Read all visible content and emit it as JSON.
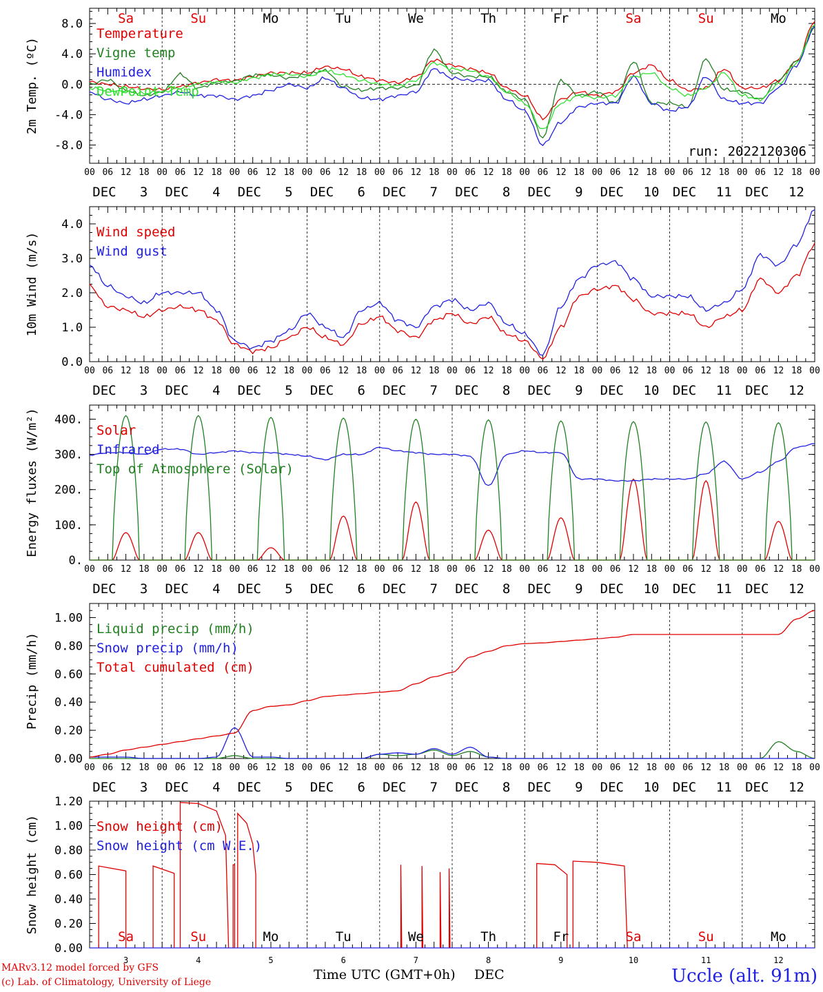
{
  "run_label": "run: 2022120306",
  "days_top": [
    "Sa",
    "Su",
    "Mo",
    "Tu",
    "We",
    "Th",
    "Fr",
    "Sa",
    "Su",
    "Mo"
  ],
  "days_top_colors": [
    "#e00000",
    "#e00000",
    "#000000",
    "#000000",
    "#000000",
    "#000000",
    "#000000",
    "#e00000",
    "#e00000",
    "#000000"
  ],
  "day_labels": [
    "3",
    "4",
    "5",
    "6",
    "7",
    "8",
    "9",
    "10",
    "11",
    "12"
  ],
  "day_prefix": "DEC",
  "hour_ticks": [
    "00",
    "06",
    "12",
    "18"
  ],
  "footer": {
    "model": "MARv3.12 model forced by GFS",
    "copyright": "(c) Lab. of Climatology, University of Liege",
    "xaxis_title": "Time UTC (GMT+0h)",
    "xaxis_month": "DEC",
    "station": "Uccle (alt. 91m)"
  },
  "chart_data": [
    {
      "id": "temp",
      "type": "line",
      "ylabel": "2m Temp. (ºC)",
      "ylim": [
        -10.4,
        10.0
      ],
      "yticks": [
        "8.0",
        "4.0",
        "0.0",
        "-4.0",
        "-8.0"
      ],
      "ytick_values": [
        8,
        4,
        0,
        -4,
        -8
      ],
      "zero_line": true,
      "x_hours": [
        0,
        6,
        12,
        18,
        24,
        30,
        36,
        42,
        48,
        54,
        60,
        66,
        72,
        78,
        84,
        90,
        96,
        102,
        108,
        114,
        120,
        126,
        132,
        138,
        144,
        150,
        156,
        162,
        168,
        174,
        180,
        186,
        192,
        198,
        204,
        210,
        216,
        222,
        228,
        234,
        240
      ],
      "series": [
        {
          "name": "Temperature",
          "color": "#e00000",
          "values": [
            0.3,
            0,
            -0.3,
            -0.6,
            -0.7,
            -0.3,
            0.2,
            0.6,
            0.5,
            1.0,
            1.5,
            1.5,
            1.5,
            2.3,
            2.0,
            1.0,
            0.5,
            0.2,
            1.0,
            3.2,
            2.5,
            2.0,
            1.5,
            -0.5,
            -1.5,
            -4.5,
            -2.0,
            -1.0,
            -1.5,
            -1.0,
            1.5,
            2.5,
            0.5,
            -0.8,
            -0.5,
            2.0,
            -0.5,
            -0.5,
            0.5,
            3.0,
            8.3
          ]
        },
        {
          "name": "Vigne temp",
          "color": "#208020",
          "values": [
            0,
            0.6,
            -0.8,
            -1.5,
            -1.0,
            1.3,
            -0.5,
            0.2,
            0.4,
            1.2,
            1.2,
            0.8,
            1.3,
            1.8,
            -0.3,
            -0.8,
            -0.5,
            -0.5,
            -0.2,
            4.5,
            1.5,
            1.0,
            1.0,
            -1.0,
            -2.0,
            -7.0,
            0.5,
            -1.5,
            -1.0,
            -2.5,
            3.0,
            -2.5,
            -2.5,
            -3.0,
            3.3,
            -0.7,
            -1.0,
            -2.0,
            0.5,
            3.0,
            7.5
          ]
        },
        {
          "name": "Humidex",
          "color": "#2020e0",
          "values": [
            -1.0,
            -2.0,
            -2.5,
            -2.0,
            -1.5,
            -1.0,
            -1.5,
            -1.5,
            -2.0,
            -1.5,
            -0.8,
            0,
            -0.5,
            0.8,
            -0.5,
            -1.8,
            -2.0,
            -1.5,
            -1.0,
            2.0,
            0.8,
            0.5,
            0.5,
            -2.0,
            -3.5,
            -8.0,
            -5.0,
            -3.0,
            -2.5,
            -2.5,
            1.0,
            -2.5,
            -3.5,
            -3.0,
            1.0,
            -2.0,
            -2.5,
            -2.5,
            -0.5,
            2.5,
            7.5
          ]
        },
        {
          "name": "DewPoint Temp",
          "color": "#30e030",
          "values": [
            -0.5,
            -0.8,
            -1.0,
            -1.2,
            -1.0,
            -0.5,
            0,
            0.3,
            0.2,
            0.8,
            1.3,
            1.3,
            1.0,
            1.8,
            1.2,
            0.5,
            0,
            -0.2,
            0.5,
            2.8,
            2.0,
            1.8,
            1.0,
            -1.0,
            -2.5,
            -6.0,
            -2.5,
            -1.5,
            -1.8,
            -1.5,
            1.0,
            1.5,
            -0.5,
            -1.5,
            -0.5,
            1.5,
            -1.5,
            -2.0,
            0,
            2.8,
            7.8
          ]
        }
      ]
    },
    {
      "id": "wind",
      "type": "line",
      "ylabel": "10m Wind (m/s)",
      "ylim": [
        0,
        4.5
      ],
      "yticks": [
        "4.0",
        "3.0",
        "2.0",
        "1.0",
        "0.0"
      ],
      "ytick_values": [
        4,
        3,
        2,
        1,
        0
      ],
      "zero_line": false,
      "x_hours": [
        0,
        6,
        12,
        18,
        24,
        30,
        36,
        42,
        48,
        54,
        60,
        66,
        72,
        78,
        84,
        90,
        96,
        102,
        108,
        114,
        120,
        126,
        132,
        138,
        144,
        150,
        156,
        162,
        168,
        174,
        180,
        186,
        192,
        198,
        204,
        210,
        216,
        222,
        228,
        234,
        240
      ],
      "series": [
        {
          "name": "Wind speed",
          "color": "#e00000",
          "values": [
            2.2,
            1.6,
            1.5,
            1.3,
            1.5,
            1.6,
            1.5,
            1.2,
            0.5,
            0.3,
            0.4,
            0.7,
            1.0,
            0.7,
            0.5,
            1.1,
            1.3,
            0.9,
            0.7,
            1.2,
            1.4,
            1.1,
            1.3,
            0.8,
            0.6,
            0.1,
            1.0,
            1.9,
            2.1,
            2.2,
            1.8,
            1.4,
            1.4,
            1.4,
            1.0,
            1.3,
            1.5,
            2.4,
            2.0,
            2.5,
            3.4
          ]
        },
        {
          "name": "Wind gust",
          "color": "#2020e0",
          "values": [
            2.8,
            2.2,
            1.9,
            1.7,
            2.0,
            2.0,
            2.0,
            1.5,
            0.6,
            0.4,
            0.6,
            0.9,
            1.4,
            1.0,
            0.7,
            1.5,
            1.7,
            1.2,
            1.0,
            1.6,
            1.8,
            1.5,
            1.7,
            1.1,
            0.8,
            0.2,
            1.6,
            2.4,
            2.8,
            2.9,
            2.4,
            1.9,
            1.9,
            1.9,
            1.5,
            1.7,
            2.1,
            3.1,
            2.8,
            3.4,
            4.4
          ]
        }
      ]
    },
    {
      "id": "flux",
      "type": "line",
      "ylabel": "Energy fluxes (W/m²)",
      "ylim": [
        0,
        440
      ],
      "yticks": [
        "400.",
        "300.",
        "200.",
        "100.",
        "0."
      ],
      "ytick_values": [
        400,
        300,
        200,
        100,
        0
      ],
      "zero_line": false,
      "x_hours": [
        0,
        6,
        12,
        18,
        24,
        30,
        36,
        42,
        48,
        54,
        60,
        66,
        72,
        78,
        84,
        90,
        96,
        102,
        108,
        114,
        120,
        126,
        132,
        138,
        144,
        150,
        156,
        162,
        168,
        174,
        180,
        186,
        192,
        198,
        204,
        210,
        216,
        222,
        228,
        234,
        240
      ],
      "series": [
        {
          "name": "Solar",
          "color": "#e00000",
          "diurnal_peaks": [
            78,
            78,
            35,
            125,
            165,
            85,
            120,
            230,
            225,
            110
          ]
        },
        {
          "name": "Infrared",
          "color": "#2020e0",
          "values": [
            298,
            305,
            305,
            300,
            315,
            315,
            300,
            305,
            310,
            305,
            305,
            300,
            295,
            285,
            300,
            300,
            320,
            310,
            305,
            300,
            300,
            295,
            210,
            300,
            310,
            305,
            305,
            230,
            230,
            225,
            225,
            230,
            230,
            230,
            245,
            280,
            230,
            250,
            280,
            320,
            330
          ]
        },
        {
          "name": "Top of Atmosphere (Solar)",
          "color": "#208020",
          "diurnal_peaks": [
            410,
            410,
            405,
            403,
            400,
            398,
            395,
            393,
            392,
            390
          ]
        }
      ]
    },
    {
      "id": "precip",
      "type": "line",
      "ylabel": "Precip (mm/h)",
      "ylim": [
        0,
        1.1
      ],
      "yticks": [
        "1.00",
        "0.80",
        "0.60",
        "0.40",
        "0.20",
        "0.00"
      ],
      "ytick_values": [
        1,
        0.8,
        0.6,
        0.4,
        0.2,
        0
      ],
      "zero_line": false,
      "x_hours": [
        0,
        6,
        12,
        18,
        24,
        30,
        36,
        42,
        48,
        54,
        60,
        66,
        72,
        78,
        84,
        90,
        96,
        102,
        108,
        114,
        120,
        126,
        132,
        138,
        144,
        150,
        156,
        162,
        168,
        174,
        180,
        186,
        192,
        198,
        204,
        210,
        216,
        222,
        228,
        234,
        240
      ],
      "series": [
        {
          "name": "Liquid precip (mm/h)",
          "color": "#208020",
          "values": [
            0,
            0,
            0,
            0,
            0,
            0,
            0,
            0,
            0.02,
            0,
            0,
            0,
            0,
            0,
            0,
            0,
            0.03,
            0.02,
            0.03,
            0.06,
            0.02,
            0.05,
            0.01,
            0,
            0,
            0,
            0,
            0,
            0,
            0,
            0,
            0,
            0,
            0,
            0,
            0,
            0,
            0,
            0.12,
            0.05,
            0
          ]
        },
        {
          "name": "Snow precip (mm/h)",
          "color": "#2020e0",
          "values": [
            0.01,
            0.01,
            0.01,
            0,
            0,
            0,
            0,
            0.01,
            0.22,
            0.01,
            0.01,
            0,
            0,
            0,
            0,
            0,
            0.03,
            0.04,
            0.03,
            0.07,
            0.03,
            0.08,
            0.01,
            0,
            0,
            0,
            0,
            0,
            0,
            0,
            0,
            0,
            0,
            0,
            0,
            0,
            0,
            0,
            0,
            0,
            0
          ]
        },
        {
          "name": "Total cumulated (cm)",
          "color": "#e00000",
          "values": [
            0.01,
            0.03,
            0.06,
            0.08,
            0.1,
            0.12,
            0.14,
            0.16,
            0.18,
            0.34,
            0.37,
            0.38,
            0.41,
            0.44,
            0.45,
            0.46,
            0.47,
            0.48,
            0.53,
            0.58,
            0.61,
            0.72,
            0.76,
            0.8,
            0.815,
            0.82,
            0.83,
            0.84,
            0.85,
            0.86,
            0.88,
            0.88,
            0.88,
            0.88,
            0.88,
            0.88,
            0.88,
            0.88,
            0.88,
            0.99,
            1.05
          ]
        }
      ]
    },
    {
      "id": "snow",
      "type": "line",
      "ylabel": "Snow height (cm)",
      "ylim": [
        0,
        1.2
      ],
      "yticks": [
        "1.20",
        "1.00",
        "0.80",
        "0.60",
        "0.40",
        "0.20",
        "0.00"
      ],
      "ytick_values": [
        1.2,
        1,
        0.8,
        0.6,
        0.4,
        0.2,
        0
      ],
      "zero_line": false,
      "series": [
        {
          "name": "Snow height (cm)",
          "color": "#e00000",
          "segments": [
            [
              [
                3,
                0
              ],
              [
                3,
                0.67
              ],
              [
                12,
                0.63
              ],
              [
                12,
                0
              ]
            ],
            [
              [
                21,
                0
              ],
              [
                21,
                0.67
              ],
              [
                28,
                0.61
              ],
              [
                28,
                0
              ]
            ],
            [
              [
                30,
                0
              ],
              [
                30,
                1.19
              ],
              [
                36,
                1.18
              ],
              [
                42,
                1.12
              ],
              [
                45,
                0.92
              ],
              [
                46,
                0
              ]
            ],
            [
              [
                47.5,
                0
              ],
              [
                47.5,
                0.68
              ],
              [
                48,
                0.68
              ],
              [
                48,
                0
              ]
            ],
            [
              [
                49,
                0
              ],
              [
                49,
                1.1
              ],
              [
                52,
                1.02
              ],
              [
                54,
                0.85
              ],
              [
                55,
                0.6
              ],
              [
                55,
                0
              ]
            ],
            [
              [
                103,
                0
              ],
              [
                103,
                0.68
              ],
              [
                103.3,
                0
              ]
            ],
            [
              [
                110,
                0
              ],
              [
                110,
                0.67
              ],
              [
                110.3,
                0
              ]
            ],
            [
              [
                116,
                0
              ],
              [
                116,
                0.62
              ],
              [
                116.3,
                0
              ]
            ],
            [
              [
                119,
                0
              ],
              [
                119,
                0.65
              ],
              [
                119.3,
                0
              ]
            ],
            [
              [
                148,
                0
              ],
              [
                148,
                0.69
              ],
              [
                154,
                0.68
              ],
              [
                158,
                0.6
              ],
              [
                158,
                0
              ]
            ],
            [
              [
                160,
                0
              ],
              [
                160,
                0.71
              ],
              [
                168,
                0.7
              ],
              [
                177,
                0.67
              ],
              [
                178,
                0
              ]
            ]
          ]
        },
        {
          "name": "Snow height (cm W.E.)",
          "color": "#2020e0",
          "segments": [
            [
              [
                0,
                0
              ],
              [
                240,
                0
              ]
            ]
          ]
        }
      ]
    }
  ]
}
